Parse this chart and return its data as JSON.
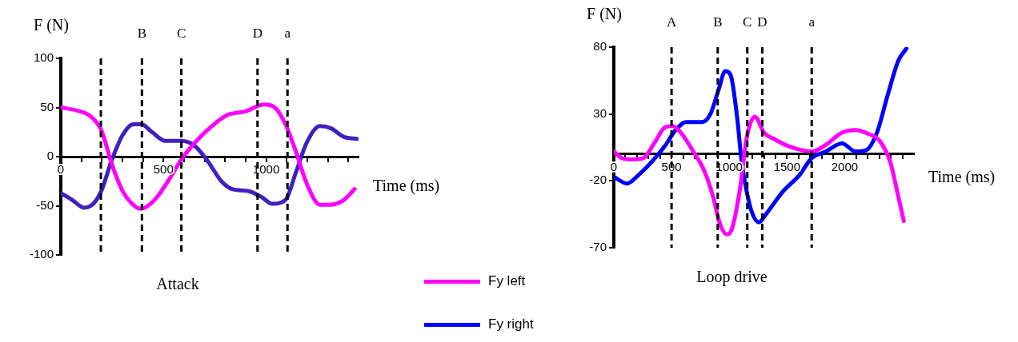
{
  "chart_data": [
    {
      "type": "line",
      "title": "Attack",
      "xlabel": "Time (ms)",
      "ylabel": "F (N)",
      "xlim": [
        0,
        1450
      ],
      "ylim": [
        -100,
        100
      ],
      "xticks": [
        0,
        {
          "value": 100,
          "label": null
        },
        {
          "value": 200,
          "label": null
        },
        {
          "value": 300,
          "label": null
        },
        {
          "value": 400,
          "label": null
        },
        500,
        {
          "value": 600,
          "label": null
        },
        {
          "value": 700,
          "label": null
        },
        {
          "value": 800,
          "label": null
        },
        {
          "value": 900,
          "label": null
        },
        1000,
        {
          "value": 1100,
          "label": null
        },
        {
          "value": 1200,
          "label": null
        },
        {
          "value": 1300,
          "label": null
        },
        {
          "value": 1400,
          "label": null
        }
      ],
      "yticks": [
        -100,
        -50,
        0,
        50,
        100
      ],
      "grid": false,
      "legend": false,
      "marker": "none",
      "line_style": "solid",
      "series": [
        {
          "color": "#ff00ff",
          "x": [
            0,
            94,
            145,
            197,
            249,
            301,
            353,
            392,
            457,
            522,
            587,
            652,
            730,
            808,
            899,
            990,
            1042,
            1094,
            1145,
            1197,
            1262,
            1314,
            1379,
            1431
          ],
          "values": [
            50,
            46,
            41,
            27,
            -8,
            -35,
            -49,
            -53,
            -44,
            -25,
            -3,
            14,
            30,
            42,
            46,
            53,
            50,
            33,
            5,
            -27,
            -49,
            -49,
            -44,
            -33
          ]
        },
        {
          "color": "#4020c0",
          "x": [
            0,
            55,
            113,
            158,
            197,
            249,
            301,
            353,
            392,
            444,
            509,
            587,
            652,
            717,
            782,
            834,
            912,
            977,
            1029,
            1094,
            1145,
            1197,
            1262,
            1314,
            1379,
            1444
          ],
          "values": [
            -37,
            -44,
            -52,
            -48,
            -35,
            -3,
            22,
            33,
            33,
            25,
            16,
            16,
            11,
            -5,
            -25,
            -33,
            -35,
            -41,
            -48,
            -44,
            -16,
            14,
            31,
            29,
            20,
            18
          ]
        }
      ],
      "ref_lines": [
        {
          "axis": "x",
          "value": 195,
          "label": null,
          "line_style": "dashed"
        },
        {
          "axis": "x",
          "value": 395,
          "label": "B",
          "line_style": "dashed"
        },
        {
          "axis": "x",
          "value": 587,
          "label": "C",
          "line_style": "dashed"
        },
        {
          "axis": "x",
          "value": 958,
          "label": "D",
          "line_style": "dashed"
        },
        {
          "axis": "x",
          "value": 1104,
          "label": "a",
          "line_style": "dashed"
        }
      ]
    },
    {
      "type": "line",
      "title": "Loop drive",
      "xlabel": "Time (ms)",
      "ylabel": "F (N)",
      "xlim": [
        0,
        2600
      ],
      "ylim": [
        -70,
        80
      ],
      "xticks": [
        0,
        {
          "value": 100,
          "label": null
        },
        {
          "value": 200,
          "label": null
        },
        {
          "value": 300,
          "label": null
        },
        {
          "value": 400,
          "label": null
        },
        500,
        {
          "value": 600,
          "label": null
        },
        {
          "value": 700,
          "label": null
        },
        {
          "value": 800,
          "label": null
        },
        {
          "value": 900,
          "label": null
        },
        1000,
        {
          "value": 1100,
          "label": null
        },
        {
          "value": 1200,
          "label": null
        },
        {
          "value": 1300,
          "label": null
        },
        {
          "value": 1400,
          "label": null
        },
        1500,
        {
          "value": 1600,
          "label": null
        },
        {
          "value": 1700,
          "label": null
        },
        {
          "value": 1800,
          "label": null
        },
        {
          "value": 1900,
          "label": null
        },
        2000,
        {
          "value": 2100,
          "label": null
        },
        {
          "value": 2200,
          "label": null
        },
        {
          "value": 2300,
          "label": null
        },
        {
          "value": 2400,
          "label": null
        },
        {
          "value": 2500,
          "label": null
        }
      ],
      "yticks": [
        -70,
        -20,
        30,
        80
      ],
      "grid": false,
      "legend": "bottom left",
      "marker": "none",
      "line_style": "solid",
      "series": [
        {
          "name": "Fy left",
          "color": "#ff00ff",
          "x": [
            0,
            70,
            163,
            256,
            349,
            442,
            512,
            581,
            674,
            791,
            860,
            919,
            977,
            1023,
            1093,
            1151,
            1221,
            1302,
            1395,
            1512,
            1628,
            1721,
            1837,
            1977,
            2093,
            2209,
            2302,
            2395,
            2465,
            2512
          ],
          "values": [
            2,
            -3,
            -4,
            -3,
            8,
            20,
            21,
            16,
            4,
            -14,
            -32,
            -52,
            -60,
            -56,
            -26,
            12,
            28,
            16,
            11,
            6,
            3,
            2,
            7,
            16,
            18,
            15,
            10,
            -6,
            -32,
            -50
          ]
        },
        {
          "name": "Fy right",
          "color": "#0000ff",
          "x": [
            0,
            116,
            209,
            326,
            442,
            535,
            628,
            767,
            837,
            907,
            965,
            1012,
            1070,
            1105,
            1151,
            1198,
            1256,
            1326,
            1465,
            1605,
            1714,
            1837,
            1977,
            2093,
            2186,
            2279,
            2372,
            2465,
            2535
          ],
          "values": [
            -17,
            -22,
            -16,
            -6,
            6,
            18,
            24,
            24,
            30,
            48,
            62,
            59,
            26,
            -4,
            -28,
            -44,
            -51,
            -44,
            -28,
            -16,
            -3,
            2,
            8,
            2,
            3,
            16,
            44,
            70,
            79
          ]
        }
      ],
      "ref_lines": [
        {
          "axis": "x",
          "value": 500,
          "label": "A",
          "line_style": "dashed"
        },
        {
          "axis": "x",
          "value": 900,
          "label": "B",
          "line_style": "dashed"
        },
        {
          "axis": "x",
          "value": 1156,
          "label": "C",
          "line_style": "dashed"
        },
        {
          "axis": "x",
          "value": 1286,
          "label": "D",
          "line_style": "dashed"
        },
        {
          "axis": "x",
          "value": 1714,
          "label": "a",
          "line_style": "dashed"
        }
      ]
    }
  ]
}
